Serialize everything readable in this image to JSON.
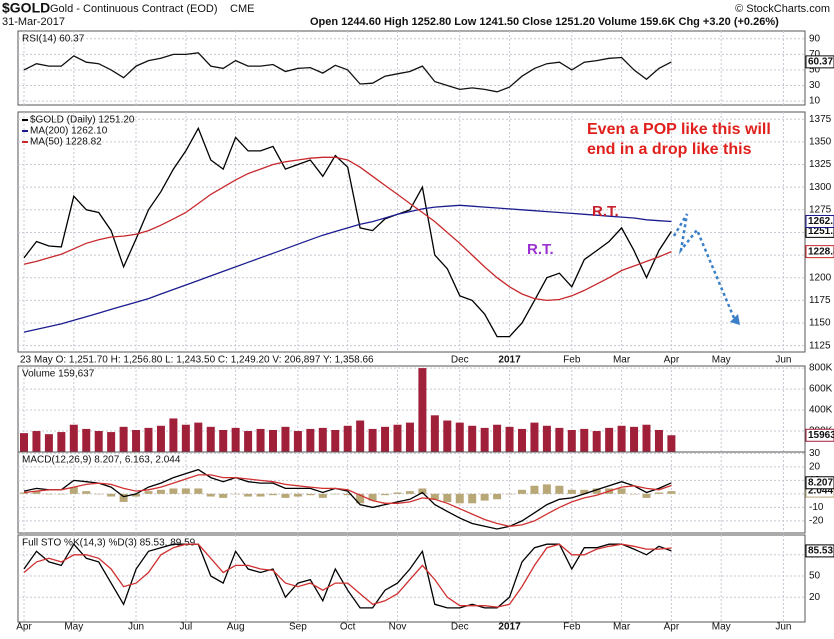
{
  "header": {
    "symbol": "$GOLD",
    "name": "Gold - Continuous Contract (EOD)",
    "exchange": "CME",
    "date": "31-Mar-2017",
    "quote": "Open 1244.60  High 1252.80  Low 1241.50  Close 1251.20  Volume 159.6K  Chg +3.20 (+0.26%)",
    "credit": "© StockCharts.com"
  },
  "chart_data": [
    {
      "type": "line",
      "title": "RSI(14) 60.37",
      "ylim": [
        5,
        100
      ],
      "yticks": [
        90,
        70,
        50,
        30,
        10
      ],
      "grid": true,
      "series": [
        {
          "color": "#111111",
          "tag": true,
          "values": [
            50,
            58,
            55,
            55,
            68,
            60,
            58,
            50,
            40,
            55,
            62,
            65,
            70,
            70,
            72,
            55,
            52,
            62,
            55,
            55,
            57,
            48,
            52,
            53,
            46,
            56,
            50,
            32,
            33,
            42,
            45,
            48,
            55,
            35,
            30,
            25,
            27,
            25,
            22,
            28,
            42,
            52,
            58,
            60,
            50,
            60,
            62,
            65,
            66,
            50,
            38,
            52,
            60.37,
            null,
            null,
            null,
            null,
            null,
            null,
            null,
            null,
            null,
            null
          ]
        }
      ]
    },
    {
      "type": "line",
      "ylim": [
        1118,
        1383
      ],
      "yticks": [
        1375,
        1350,
        1325,
        1300,
        1275,
        1250,
        1225,
        1200,
        1175,
        1150,
        1125
      ],
      "grid": true,
      "info": "23 May O: 1,251.70  H: 1,256.80  L: 1,243.50  C: 1,249.20  V: 206,897  Y: 1,358.66",
      "annotations": [
        "Even a POP like this will",
        "end in a drop like this",
        "R.T.",
        "R.T."
      ],
      "series": [
        {
          "name": "$GOLD (Daily) 1251.20",
          "color": "#000000",
          "tag": true,
          "values": [
            1222,
            1240,
            1235,
            1234,
            1290,
            1275,
            1272,
            1252,
            1212,
            1243,
            1275,
            1295,
            1320,
            1340,
            1365,
            1330,
            1320,
            1355,
            1340,
            1340,
            1345,
            1320,
            1325,
            1330,
            1312,
            1335,
            1322,
            1255,
            1252,
            1265,
            1270,
            1275,
            1300,
            1225,
            1210,
            1180,
            1175,
            1160,
            1135,
            1135,
            1150,
            1175,
            1200,
            1205,
            1190,
            1220,
            1230,
            1240,
            1255,
            1230,
            1200,
            1230,
            1251.2,
            null,
            null,
            null,
            null,
            null,
            null,
            null,
            null,
            null,
            null
          ]
        },
        {
          "name": "MA(200) 1262.10",
          "color": "#1c1c90",
          "tag": true,
          "values": [
            1140,
            1143,
            1146,
            1149,
            1153,
            1157,
            1161,
            1165,
            1169,
            1173,
            1177,
            1182,
            1187,
            1192,
            1197,
            1202,
            1207,
            1212,
            1217,
            1222,
            1227,
            1232,
            1237,
            1242,
            1247,
            1251,
            1255,
            1259,
            1262,
            1266,
            1270,
            1273,
            1276,
            1278,
            1279,
            1280,
            1279,
            1278,
            1277,
            1276,
            1275,
            1274,
            1273,
            1272,
            1271,
            1270,
            1269,
            1268,
            1267,
            1266,
            1264,
            1263,
            1262.1,
            null,
            null,
            null,
            null,
            null,
            null,
            null,
            null,
            null,
            null
          ]
        },
        {
          "name": "MA(50) 1228.82",
          "color": "#c8282c",
          "tag": true,
          "values": [
            1215,
            1218,
            1222,
            1226,
            1232,
            1238,
            1242,
            1245,
            1246,
            1248,
            1252,
            1258,
            1265,
            1272,
            1282,
            1292,
            1300,
            1308,
            1315,
            1320,
            1325,
            1328,
            1330,
            1332,
            1333,
            1333,
            1330,
            1322,
            1312,
            1302,
            1292,
            1282,
            1272,
            1262,
            1250,
            1238,
            1225,
            1212,
            1200,
            1190,
            1182,
            1177,
            1175,
            1176,
            1180,
            1186,
            1193,
            1200,
            1208,
            1213,
            1218,
            1223,
            1228.82,
            null,
            null,
            null,
            null,
            null,
            null,
            null,
            null,
            null,
            null
          ]
        }
      ]
    },
    {
      "type": "bar",
      "title": "Volume 159,637",
      "ylim": [
        0,
        820000
      ],
      "grid": true,
      "yticks": [
        {
          "value": 800000,
          "label": "800K"
        },
        {
          "value": 600000,
          "label": "600K"
        },
        {
          "value": 400000,
          "label": "400K"
        },
        {
          "value": 200000,
          "label": "200K"
        }
      ],
      "series": [
        {
          "color": "#a0203a",
          "type": "bar",
          "tag": true,
          "values": [
            180000,
            200000,
            170000,
            190000,
            260000,
            220000,
            200000,
            190000,
            240000,
            210000,
            230000,
            250000,
            320000,
            260000,
            280000,
            240000,
            210000,
            230000,
            200000,
            220000,
            210000,
            240000,
            200000,
            220000,
            230000,
            210000,
            250000,
            300000,
            220000,
            240000,
            260000,
            280000,
            800000,
            350000,
            300000,
            280000,
            250000,
            230000,
            260000,
            240000,
            220000,
            280000,
            250000,
            230000,
            210000,
            220000,
            200000,
            230000,
            250000,
            240000,
            260000,
            210000,
            159637,
            null,
            null,
            null,
            null,
            null,
            null,
            null,
            null,
            null,
            null
          ]
        }
      ]
    },
    {
      "type": "line",
      "title": "MACD(12,26,9) 8.207, 6.163, 2.044",
      "ylim": [
        -29,
        31
      ],
      "yticks": [
        30,
        20,
        10,
        0,
        -10,
        -20
      ],
      "grid": true,
      "series": [
        {
          "color": "#b8a878",
          "type": "bar",
          "tag": true,
          "values": [
            1,
            2,
            0,
            0,
            5,
            2,
            0,
            -2,
            -6,
            -2,
            2,
            3,
            4,
            4,
            4,
            -2,
            -3,
            0,
            -2,
            -2,
            -1,
            -3,
            -2,
            -1,
            -3,
            0,
            -1,
            -7,
            -5,
            -1,
            1,
            2,
            4,
            -4,
            -6,
            -7,
            -7,
            -5,
            -4,
            0,
            3,
            6,
            7,
            6,
            3,
            3,
            4,
            4,
            4,
            0,
            -3,
            1,
            2.044,
            null,
            null,
            null,
            null,
            null,
            null,
            null,
            null,
            null,
            null
          ]
        },
        {
          "color": "#000000",
          "tag": true,
          "values": [
            2,
            4,
            3,
            3,
            10,
            9,
            8,
            5,
            -2,
            0,
            5,
            8,
            12,
            15,
            18,
            12,
            9,
            12,
            9,
            8,
            8,
            4,
            4,
            4,
            1,
            4,
            2,
            -8,
            -10,
            -8,
            -6,
            -4,
            1,
            -8,
            -13,
            -18,
            -22,
            -24,
            -26,
            -24,
            -20,
            -14,
            -8,
            -4,
            -3,
            0,
            3,
            6,
            9,
            6,
            1,
            4,
            8.207,
            null,
            null,
            null,
            null,
            null,
            null,
            null,
            null,
            null,
            null
          ]
        },
        {
          "color": "#d03030",
          "values": [
            1,
            2,
            3,
            3,
            5,
            7,
            8,
            7,
            4,
            2,
            3,
            5,
            8,
            11,
            14,
            14,
            12,
            12,
            11,
            10,
            9,
            7,
            6,
            5,
            4,
            4,
            3,
            -1,
            -5,
            -7,
            -7,
            -6,
            -3,
            -4,
            -7,
            -11,
            -15,
            -19,
            -22,
            -24,
            -23,
            -20,
            -15,
            -10,
            -6,
            -3,
            -1,
            2,
            5,
            6,
            4,
            3,
            6.163,
            null,
            null,
            null,
            null,
            null,
            null,
            null,
            null,
            null,
            null
          ]
        }
      ]
    },
    {
      "type": "line",
      "title": "Full STO %K(14,3) %D(3) 85.53, 89.59",
      "ylim": [
        -15,
        108
      ],
      "yticks": [
        80,
        50,
        20
      ],
      "grid": true,
      "categories": [
        "Apr",
        null,
        null,
        null,
        "May",
        null,
        null,
        null,
        null,
        "Jun",
        null,
        null,
        null,
        "Jul",
        null,
        null,
        null,
        "Aug",
        null,
        null,
        null,
        null,
        "Sep",
        null,
        null,
        null,
        "Oct",
        null,
        null,
        null,
        "Nov",
        null,
        null,
        null,
        null,
        "Dec",
        null,
        null,
        null,
        "2017",
        null,
        null,
        null,
        null,
        "Feb",
        null,
        null,
        null,
        "Mar",
        null,
        null,
        null,
        "Apr",
        null,
        null,
        null,
        "May",
        null,
        null,
        null,
        null,
        "Jun",
        null
      ],
      "series": [
        {
          "color": "#000000",
          "tag": true,
          "values": [
            60,
            85,
            70,
            65,
            95,
            75,
            70,
            40,
            10,
            60,
            85,
            90,
            95,
            95,
            95,
            50,
            40,
            85,
            60,
            55,
            60,
            20,
            40,
            45,
            15,
            60,
            30,
            5,
            5,
            30,
            40,
            60,
            85,
            10,
            5,
            5,
            10,
            5,
            5,
            20,
            70,
            90,
            95,
            95,
            60,
            90,
            90,
            95,
            95,
            88,
            80,
            92,
            85.53,
            null,
            null,
            null,
            null,
            null,
            null,
            null,
            null,
            null,
            null
          ]
        },
        {
          "color": "#d03030",
          "values": [
            55,
            70,
            75,
            70,
            80,
            80,
            75,
            60,
            35,
            40,
            55,
            80,
            90,
            95,
            95,
            75,
            55,
            65,
            65,
            60,
            58,
            40,
            35,
            40,
            30,
            40,
            40,
            25,
            10,
            15,
            25,
            45,
            65,
            45,
            20,
            8,
            8,
            8,
            6,
            10,
            35,
            65,
            90,
            95,
            80,
            80,
            88,
            92,
            95,
            92,
            88,
            88,
            89.59,
            null,
            null,
            null,
            null,
            null,
            null,
            null,
            null,
            null,
            null
          ]
        }
      ]
    }
  ]
}
